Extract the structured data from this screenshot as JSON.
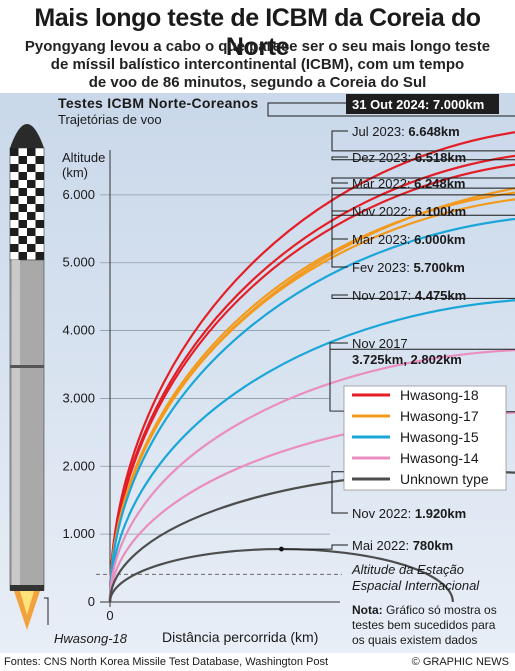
{
  "header": {
    "title": "Mais longo teste de ICBM da Coreia do Norte",
    "subtitle_lines": [
      "Pyongyang levou a cabo o que parece ser o seu mais longo teste",
      "de míssil balístico intercontinental (ICBM), com um tempo",
      "de voo de 86 minutos, segundo a Coreia do Sul"
    ]
  },
  "colors": {
    "Hwasong-18": "#e41e26",
    "Hwasong-17": "#f39a1c",
    "Hwasong-15": "#1aa6d8",
    "Hwasong-14": "#ea8ec0",
    "Unknown type": "#4d4d4d"
  },
  "chart_data": {
    "type": "line",
    "title": "Testes ICBM Norte-Coreanos",
    "subtitle": "Trajetórias de voo",
    "ylabel_lines": [
      "Altitude",
      "(km)"
    ],
    "xlabel": "Distância percorrida (km)",
    "xlim": [
      0,
      1150
    ],
    "ylim": [
      0,
      7000
    ],
    "x_ticks": [
      0,
      500,
      1000
    ],
    "y_ticks": [
      {
        "value": 0,
        "label": "0"
      },
      {
        "value": 1000,
        "label": "1.000"
      },
      {
        "value": 2000,
        "label": "2.000"
      },
      {
        "value": 3000,
        "label": "3.000"
      },
      {
        "value": 4000,
        "label": "4.000"
      },
      {
        "value": 5000,
        "label": "5.000"
      },
      {
        "value": 6000,
        "label": "6.000"
      }
    ],
    "grid": true,
    "legend": {
      "placement": "right",
      "entries": [
        "Hwasong-18",
        "Hwasong-17",
        "Hwasong-15",
        "Hwasong-14",
        "Unknown type"
      ]
    },
    "series": [
      {
        "date": "31 Out 2024",
        "value": "7.000km",
        "apogee": 7000,
        "range": 1000,
        "type": "Hwasong-18"
      },
      {
        "date": "Jul 2023",
        "value": "6.648km",
        "apogee": 6648,
        "range": 1000,
        "type": "Hwasong-18"
      },
      {
        "date": "Dez 2023",
        "value": "6.518km",
        "apogee": 6518,
        "range": 1000,
        "type": "Hwasong-18"
      },
      {
        "date": "Mar 2022",
        "value": "6.248km",
        "apogee": 6248,
        "range": 1090,
        "type": "Hwasong-17"
      },
      {
        "date": "Nov 2022",
        "value": "6.100km",
        "apogee": 6100,
        "range": 1000,
        "type": "Hwasong-17"
      },
      {
        "date": "Mar 2023",
        "value": "6.000km",
        "apogee": 6000,
        "range": 1000,
        "type": "Hwasong-17"
      },
      {
        "date": "Fev 2023",
        "value": "5.700km",
        "apogee": 5700,
        "range": 990,
        "type": "Hwasong-15"
      },
      {
        "date": "Nov 2017",
        "value": "4.475km",
        "apogee": 4475,
        "range": 960,
        "type": "Hwasong-15"
      },
      {
        "date": "Nov 2017",
        "value": "3.725km, 2.802km",
        "apogee": 3725,
        "range": 930,
        "type": "Hwasong-14"
      },
      {
        "date": "",
        "value": "",
        "apogee": 2802,
        "range": 930,
        "type": "Hwasong-14"
      },
      {
        "date": "Nov 2022",
        "value": "1.920km",
        "apogee": 1920,
        "range": 760,
        "type": "Unknown type"
      },
      {
        "date": "Mai 2022",
        "value": "780km",
        "apogee": 780,
        "range": 360,
        "type": "Unknown type"
      }
    ],
    "iss": {
      "altitude": 408,
      "label_lines": [
        "Altitude da Estação",
        "Espacial Internacional"
      ]
    },
    "note": {
      "bold": "Nota:",
      "lines": [
        " Gráfico só mostra os",
        "testes bem sucedidos para",
        "os quais existem dados"
      ]
    },
    "missile_label": "Hwasong-18"
  },
  "footer": {
    "sources": "Fontes: CNS North Korea Missile Test Database, Washington Post",
    "credit": "© GRAPHIC NEWS"
  }
}
